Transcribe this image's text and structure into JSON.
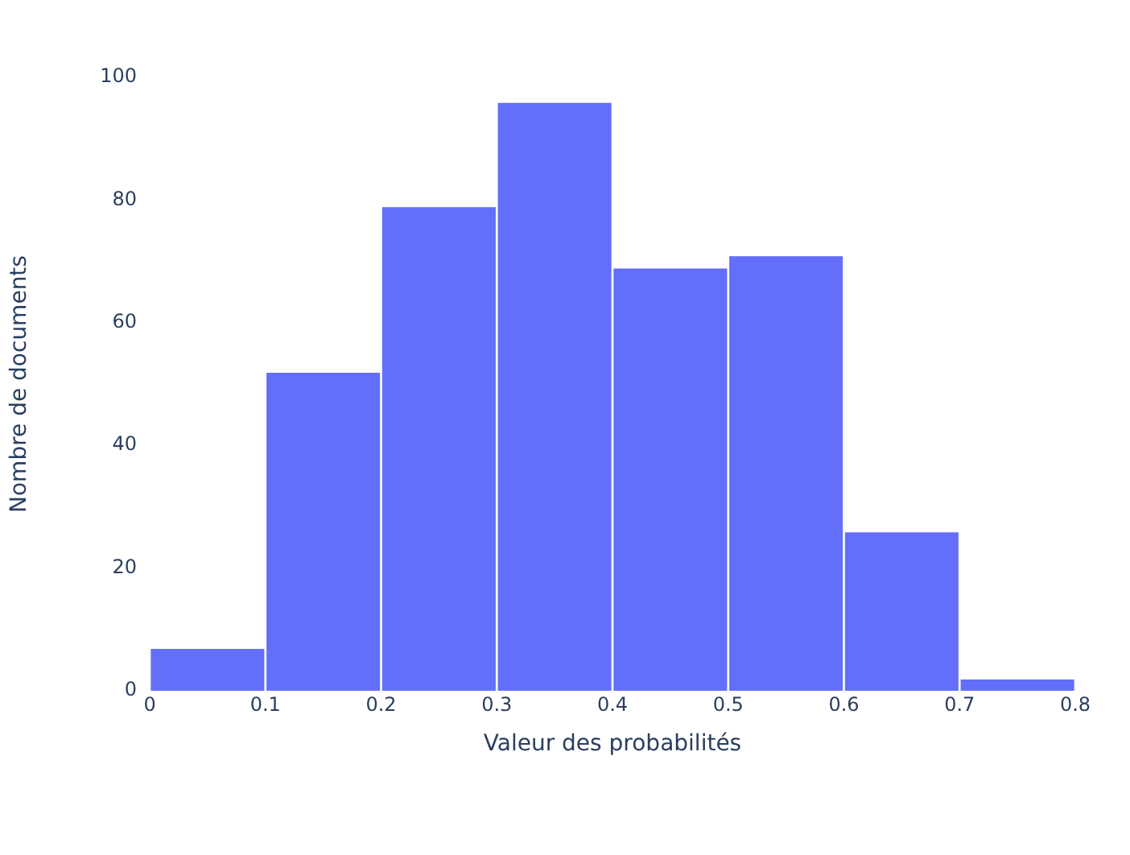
{
  "chart_data": {
    "type": "histogram",
    "xlabel": "Valeur des probabilités",
    "ylabel": "Nombre de documents",
    "bins": [
      0,
      0.1,
      0.2,
      0.3,
      0.4,
      0.5,
      0.6,
      0.7,
      0.8
    ],
    "values": [
      7,
      52,
      79,
      96,
      69,
      71,
      26,
      2
    ],
    "color": "#636efa",
    "xlim": [
      0,
      0.8
    ],
    "xticks": [
      0,
      0.1,
      0.2,
      0.3,
      0.4,
      0.5,
      0.6,
      0.7,
      0.8
    ],
    "ylim": [
      0,
      100
    ],
    "yticks": [
      0,
      20,
      40,
      60,
      80,
      100
    ],
    "grid": false,
    "legend": false
  }
}
